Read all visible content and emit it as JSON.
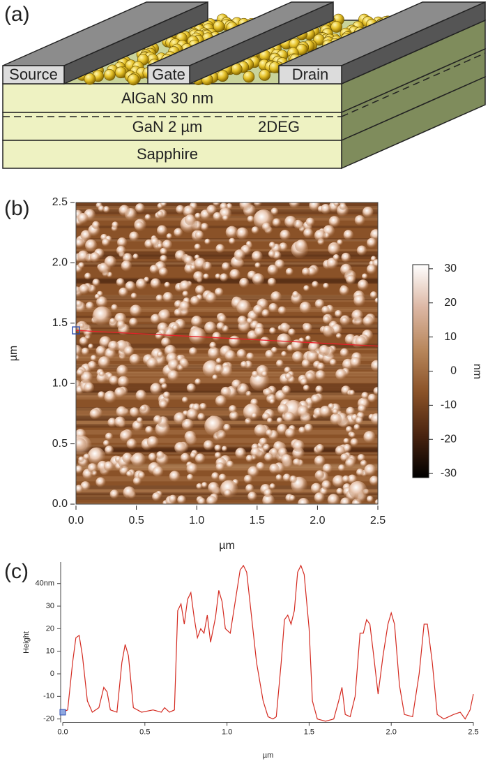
{
  "diagram": {
    "label": "(a)",
    "electrodes": [
      "Source",
      "Gate",
      "Drain"
    ],
    "layers": [
      "AlGaN 30 nm",
      "GaN 2 µm",
      "Sapphire"
    ],
    "channel_label": "2DEG"
  },
  "chart_data": [
    {
      "type": "image",
      "panel_label": "(b)",
      "xlabel": "µm",
      "ylabel": "µm",
      "xlim": [
        0,
        2.5
      ],
      "ylim": [
        0,
        2.5
      ],
      "xticks": [
        {
          "value": 0,
          "label": "0.0"
        },
        0.5,
        {
          "value": 1,
          "label": "1.0"
        },
        1.5,
        {
          "value": 2,
          "label": "2.0"
        },
        2.5
      ],
      "yticks": [
        {
          "value": 0,
          "label": "0.0"
        },
        0.5,
        {
          "value": 1,
          "label": "1.0"
        },
        1.5,
        {
          "value": 2,
          "label": "2.0"
        },
        2.5
      ],
      "colorbar": {
        "label": "nm",
        "clim": [
          -31.2,
          31.2
        ],
        "ticks": [
          30,
          20,
          10,
          0,
          -10,
          -20,
          -30
        ],
        "colors": [
          "#000000",
          "#4a2410",
          "#8a5228",
          "#b8875c",
          "#dcb7a4",
          "#ffffff"
        ]
      },
      "profile_line": {
        "x": [
          0,
          2.5
        ],
        "y": [
          1.44,
          1.31
        ],
        "color": "#e8202a"
      }
    },
    {
      "type": "line",
      "panel_label": "(c)",
      "xlabel": "µm",
      "ylabel": "Height",
      "x": [
        0,
        0.03,
        0.06,
        0.08,
        0.1,
        0.12,
        0.15,
        0.18,
        0.22,
        0.25,
        0.27,
        0.29,
        0.33,
        0.36,
        0.38,
        0.4,
        0.43,
        0.48,
        0.55,
        0.6,
        0.62,
        0.65,
        0.68,
        0.7,
        0.72,
        0.74,
        0.76,
        0.78,
        0.8,
        0.82,
        0.84,
        0.86,
        0.88,
        0.9,
        0.93,
        0.95,
        0.97,
        0.99,
        1.02,
        1.05,
        1.08,
        1.1,
        1.12,
        1.15,
        1.18,
        1.22,
        1.25,
        1.28,
        1.3,
        1.33,
        1.35,
        1.37,
        1.39,
        1.41,
        1.43,
        1.45,
        1.47,
        1.5,
        1.52,
        1.55,
        1.6,
        1.65,
        1.68,
        1.7,
        1.72,
        1.75,
        1.78,
        1.81,
        1.83,
        1.85,
        1.87,
        1.89,
        1.92,
        1.95,
        1.98,
        2.0,
        2.02,
        2.05,
        2.08,
        2.13,
        2.17,
        2.2,
        2.22,
        2.25,
        2.28,
        2.32,
        2.38,
        2.42,
        2.45,
        2.48,
        2.5
      ],
      "series": [
        {
          "color": "#d42a20",
          "values": [
            -17,
            -16,
            5,
            16,
            17,
            8,
            -12,
            -17,
            -15,
            -6,
            -8,
            -16,
            -17,
            5,
            13,
            8,
            -15,
            -17,
            -16,
            -17,
            -15,
            -17,
            -16,
            28,
            31,
            22,
            33,
            36,
            25,
            16,
            20,
            18,
            26,
            14,
            25,
            37,
            32,
            20,
            18,
            32,
            46,
            48,
            45,
            25,
            5,
            -12,
            -19,
            -20,
            -19,
            5,
            24,
            26,
            22,
            28,
            45,
            48,
            44,
            20,
            -12,
            -20,
            -21,
            -20,
            -12,
            -6,
            -18,
            -19,
            -10,
            18,
            18,
            24,
            22,
            10,
            -9,
            8,
            22,
            27,
            22,
            -5,
            -18,
            -19,
            0,
            22,
            22,
            5,
            -18,
            -20,
            -18,
            -17,
            -20,
            -16,
            -9
          ]
        }
      ],
      "xlim": [
        0,
        2.5
      ],
      "ylim": [
        -21.5,
        49.5
      ],
      "xticks": [
        {
          "value": 0,
          "label": "0.0"
        },
        0.5,
        {
          "value": 1,
          "label": "1.0"
        },
        1.5,
        {
          "value": 2,
          "label": "2.0"
        },
        2.5
      ],
      "yticks": [
        -20,
        -10,
        0,
        10,
        20,
        30,
        {
          "value": 40,
          "label": "40nm"
        }
      ]
    }
  ]
}
